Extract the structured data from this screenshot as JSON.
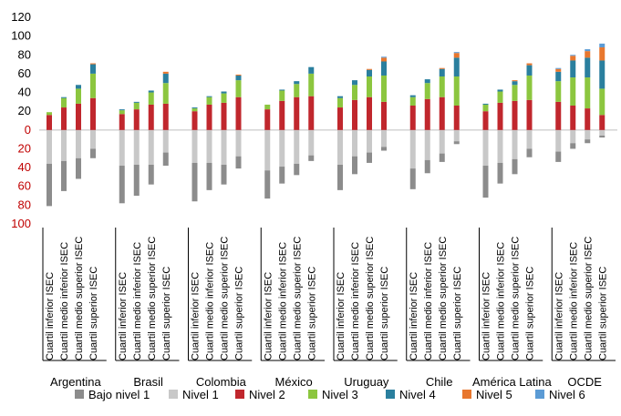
{
  "chart_data": {
    "type": "bar",
    "stacked": "diverging",
    "y_ticks": [
      {
        "label": "120",
        "value": 120,
        "color": "#000000"
      },
      {
        "label": "100",
        "value": 100,
        "color": "#000000"
      },
      {
        "label": "80",
        "value": 80,
        "color": "#000000"
      },
      {
        "label": "60",
        "value": 60,
        "color": "#000000"
      },
      {
        "label": "40",
        "value": 40,
        "color": "#000000"
      },
      {
        "label": "20",
        "value": 20,
        "color": "#000000"
      },
      {
        "label": "0",
        "value": 0,
        "color": "#c00000"
      },
      {
        "label": "20",
        "value": -20,
        "color": "#c00000"
      },
      {
        "label": "40",
        "value": -40,
        "color": "#c00000"
      },
      {
        "label": "60",
        "value": -60,
        "color": "#c00000"
      },
      {
        "label": "80",
        "value": -80,
        "color": "#c00000"
      },
      {
        "label": "100",
        "value": -100,
        "color": "#c00000"
      }
    ],
    "ylim": [
      -100,
      120
    ],
    "grid": false,
    "legend_position": "bottom",
    "bar_labels": [
      "Cuartil inferior ISEC",
      "Cuartil medio inferior ISEC",
      "Cuartil medio superior ISEC",
      "Cuartil superior ISEC"
    ],
    "legend": [
      {
        "name": "Bajo nivel 1",
        "color": "#8c8c8c"
      },
      {
        "name": "Nivel 1",
        "color": "#c8c8c8"
      },
      {
        "name": "Nivel 2",
        "color": "#c0272d"
      },
      {
        "name": "Nivel 3",
        "color": "#8cc63f"
      },
      {
        "name": "Nivel 4",
        "color": "#2a7f9e"
      },
      {
        "name": "Nivel 5",
        "color": "#e8772e"
      },
      {
        "name": "Nivel 6",
        "color": "#5b9bd5"
      }
    ],
    "groups": [
      {
        "name": "Argentina",
        "bars": [
          [
            45,
            36,
            16,
            3,
            0,
            0,
            0
          ],
          [
            32,
            33,
            24,
            10,
            1,
            0,
            0
          ],
          [
            22,
            30,
            28,
            16,
            4,
            0,
            0
          ],
          [
            10,
            20,
            34,
            26,
            10,
            1,
            0
          ]
        ]
      },
      {
        "name": "Brasil",
        "bars": [
          [
            40,
            38,
            17,
            4,
            1,
            0,
            0
          ],
          [
            33,
            37,
            22,
            7,
            1,
            0,
            0
          ],
          [
            21,
            37,
            27,
            13,
            2,
            0,
            0
          ],
          [
            14,
            24,
            28,
            22,
            10,
            2,
            0
          ]
        ]
      },
      {
        "name": "Colombia",
        "bars": [
          [
            41,
            35,
            20,
            3,
            1,
            0,
            0
          ],
          [
            29,
            35,
            27,
            8,
            1,
            0,
            0
          ],
          [
            21,
            37,
            29,
            10,
            2,
            0,
            0
          ],
          [
            13,
            28,
            35,
            18,
            5,
            1,
            0
          ]
        ]
      },
      {
        "name": "México",
        "bars": [
          [
            30,
            43,
            22,
            5,
            0,
            0,
            0
          ],
          [
            18,
            39,
            31,
            11,
            1,
            0,
            0
          ],
          [
            12,
            36,
            35,
            14,
            3,
            0,
            0
          ],
          [
            6,
            27,
            36,
            24,
            7,
            0,
            0
          ]
        ]
      },
      {
        "name": "Uruguay",
        "bars": [
          [
            27,
            37,
            24,
            10,
            2,
            0,
            0
          ],
          [
            19,
            28,
            32,
            16,
            5,
            0,
            0
          ],
          [
            11,
            24,
            35,
            22,
            7,
            1,
            0
          ],
          [
            4,
            18,
            30,
            28,
            15,
            4,
            1
          ]
        ]
      },
      {
        "name": "Chile",
        "bars": [
          [
            22,
            41,
            26,
            9,
            2,
            0,
            0
          ],
          [
            14,
            32,
            33,
            17,
            4,
            0,
            0
          ],
          [
            9,
            25,
            35,
            22,
            8,
            1,
            0
          ],
          [
            3,
            12,
            26,
            31,
            20,
            5,
            1
          ]
        ]
      },
      {
        "name": "América Latina",
        "bars": [
          [
            34,
            38,
            20,
            7,
            1,
            0,
            0
          ],
          [
            22,
            35,
            29,
            12,
            2,
            0,
            0
          ],
          [
            16,
            31,
            31,
            17,
            4,
            1,
            0
          ],
          [
            9,
            20,
            32,
            26,
            11,
            2,
            0
          ]
        ]
      },
      {
        "name": "OCDE",
        "bars": [
          [
            11,
            23,
            30,
            22,
            10,
            3,
            1
          ],
          [
            6,
            14,
            26,
            30,
            18,
            5,
            1
          ],
          [
            4,
            10,
            23,
            33,
            21,
            7,
            2
          ],
          [
            2,
            6,
            16,
            28,
            30,
            14,
            4
          ]
        ]
      }
    ]
  }
}
